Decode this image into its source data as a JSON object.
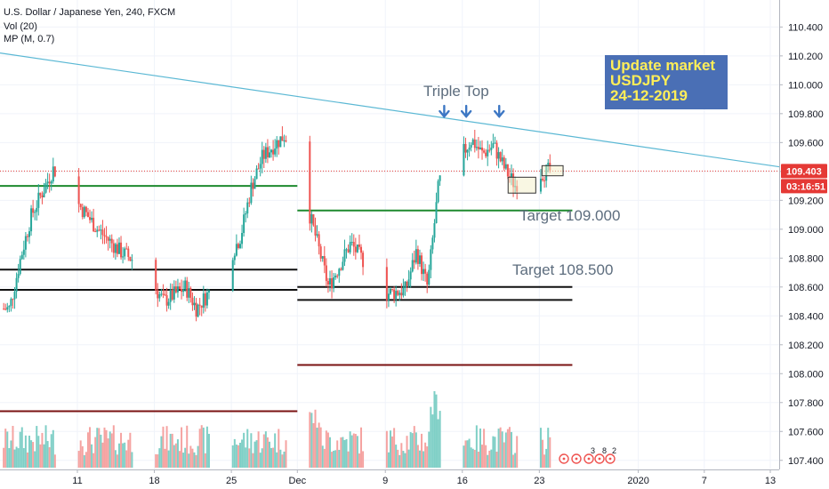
{
  "header": {
    "symbol_title": "U.S. Dollar / Japanese Yen, 240, FXCM",
    "indicator_vol": "Vol (20)",
    "indicator_mp": "MP (M, 0.7)"
  },
  "price_labels": {
    "last_price": "109.403",
    "countdown": "03:16:51"
  },
  "colors": {
    "up": "#26a69a",
    "down": "#ef5350",
    "vol_up": "#7fcfc6",
    "vol_down": "#f5a3a1",
    "trendline": "#5bb8d4",
    "support_green": "#1e8a2e",
    "level_black": "#111111",
    "level_darkred": "#7a1212",
    "info_box": "#4a6fb5",
    "arrow_blue": "#3d77c4",
    "price_tag": "#e53935"
  },
  "chart_data": {
    "type": "candlestick",
    "title": "U.S. Dollar / Japanese Yen, 240, FXCM",
    "y_axis": {
      "ticks": [
        "110.400",
        "110.200",
        "110.000",
        "109.800",
        "109.600",
        "109.400",
        "109.200",
        "109.000",
        "108.800",
        "108.600",
        "108.400",
        "108.200",
        "108.000",
        "107.800",
        "107.600",
        "107.400"
      ],
      "range": [
        107.3,
        110.55
      ]
    },
    "x_axis": {
      "ticks": [
        "11",
        "18",
        "25",
        "Dec",
        "9",
        "16",
        "23",
        "2020",
        "7",
        "13"
      ]
    },
    "price_path": [
      [
        "Nov 5",
        108.45
      ],
      [
        "Nov 6",
        108.8
      ],
      [
        "Nov 7",
        109.1
      ],
      [
        "Nov 9",
        109.42
      ],
      [
        "Nov 11",
        109.2
      ],
      [
        "Nov 13",
        109.0
      ],
      [
        "Nov 15",
        108.85
      ],
      [
        "Nov 17",
        108.75
      ],
      [
        "Nov 19",
        108.5
      ],
      [
        "Nov 21",
        108.6
      ],
      [
        "Nov 22",
        108.45
      ],
      [
        "Nov 24",
        108.65
      ],
      [
        "Nov 26",
        108.95
      ],
      [
        "Nov 27",
        109.3
      ],
      [
        "Nov 28",
        109.5
      ],
      [
        "Nov 29",
        109.58
      ],
      [
        "Nov 30",
        109.65
      ],
      [
        "Dec 1",
        109.55
      ],
      [
        "Dec 2",
        109.18
      ],
      [
        "Dec 3",
        108.9
      ],
      [
        "Dec 4",
        108.6
      ],
      [
        "Dec 5",
        108.75
      ],
      [
        "Dec 6",
        108.9
      ],
      [
        "Dec 8",
        108.7
      ],
      [
        "Dec 9",
        108.55
      ],
      [
        "Dec 11",
        108.58
      ],
      [
        "Dec 12",
        108.85
      ],
      [
        "Dec 13",
        108.6
      ],
      [
        "Dec 14",
        109.3
      ],
      [
        "Dec 15",
        109.58
      ],
      [
        "Dec 16",
        109.5
      ],
      [
        "Dec 17",
        109.62
      ],
      [
        "Dec 18",
        109.52
      ],
      [
        "Dec 19",
        109.58
      ],
      [
        "Dec 20",
        109.42
      ],
      [
        "Dec 21",
        109.3
      ],
      [
        "Dec 22",
        109.45
      ],
      [
        "Dec 23",
        109.38
      ],
      [
        "Dec 24",
        109.403
      ]
    ],
    "levels": [
      {
        "value": 109.3,
        "x_from": "Nov 1",
        "x_to": "Dec 1",
        "color": "support_green"
      },
      {
        "value": 109.13,
        "x_from": "Dec 1",
        "x_to": "Dec 26",
        "color": "support_green"
      },
      {
        "value": 108.72,
        "x_from": "Nov 1",
        "x_to": "Dec 1",
        "color": "level_black"
      },
      {
        "value": 108.58,
        "x_from": "Nov 1",
        "x_to": "Dec 1",
        "color": "level_black"
      },
      {
        "value": 108.6,
        "x_from": "Dec 1",
        "x_to": "Dec 26",
        "color": "level_black"
      },
      {
        "value": 108.51,
        "x_from": "Dec 1",
        "x_to": "Dec 26",
        "color": "level_black"
      },
      {
        "value": 108.06,
        "x_from": "Dec 1",
        "x_to": "Dec 26",
        "color": "level_darkred"
      },
      {
        "value": 107.74,
        "x_from": "Nov 1",
        "x_to": "Dec 1",
        "color": "level_darkred"
      }
    ],
    "trendline": {
      "from": [
        "Nov 1",
        110.22
      ],
      "to": [
        "Jan 14",
        109.43
      ]
    },
    "annotations": {
      "triple_top": "Triple Top",
      "target_1": "Target 109.000",
      "target_2": "Target 108.500",
      "info_lines": [
        "Update market",
        "USDJPY",
        "24-12-2019"
      ]
    }
  }
}
